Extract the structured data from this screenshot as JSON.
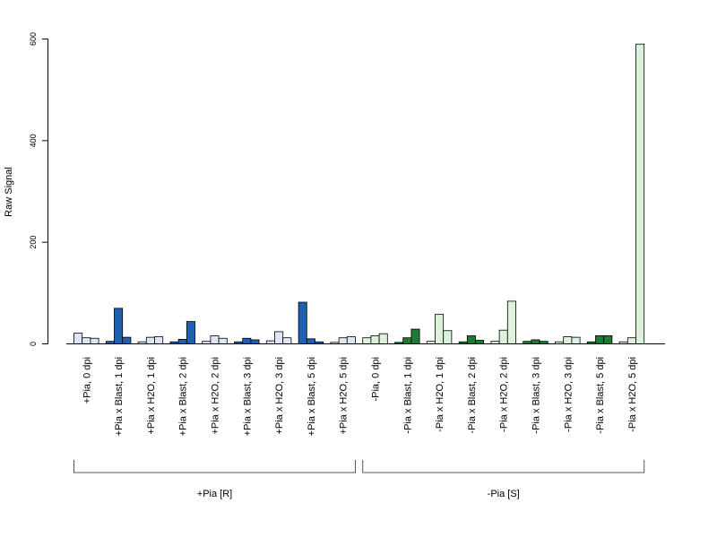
{
  "chart_data": {
    "type": "bar",
    "ylabel": "Raw Signal",
    "ylim": [
      0,
      600
    ],
    "yticks": [
      0,
      200,
      400,
      600
    ],
    "grid": false,
    "legend": "none",
    "colors": {
      "pia_plus_dark": "#2060b0",
      "pia_plus_light": "#dce6f5",
      "pia_minus_dark": "#1f7a35",
      "pia_minus_light": "#dcf2dc"
    },
    "categories": [
      "+Pia, 0 dpi",
      "+Pia x Blast, 1 dpi",
      "+Pia x H2O, 1 dpi",
      "+Pia x Blast, 2 dpi",
      "+Pia x H2O, 2 dpi",
      "+Pia x Blast, 3 dpi",
      "+Pia x H2O, 3 dpi",
      "+Pia x Blast, 5 dpi",
      "+Pia x H2O, 5 dpi",
      "-Pia, 0 dpi",
      "-Pia x Blast, 1 dpi",
      "-Pia x H2O, 1 dpi",
      "-Pia x Blast, 2 dpi",
      "-Pia x H2O, 2 dpi",
      "-Pia x Blast, 3 dpi",
      "-Pia x H2O, 3 dpi",
      "-Pia x Blast, 5 dpi",
      "-Pia x H2O, 5 dpi"
    ],
    "groups": [
      {
        "label": "+Pia [R]",
        "from": 0,
        "to": 8
      },
      {
        "label": "-Pia [S]",
        "from": 9,
        "to": 17
      }
    ],
    "bars": [
      {
        "values": [
          21,
          12,
          11
        ],
        "colors": [
          "light",
          "light",
          "light"
        ],
        "palette": "plus"
      },
      {
        "values": [
          5,
          70,
          13
        ],
        "colors": [
          "dark",
          "dark",
          "dark"
        ],
        "palette": "plus"
      },
      {
        "values": [
          4,
          13,
          14
        ],
        "colors": [
          "light",
          "light",
          "light"
        ],
        "palette": "plus"
      },
      {
        "values": [
          4,
          9,
          44
        ],
        "colors": [
          "dark",
          "dark",
          "dark"
        ],
        "palette": "plus"
      },
      {
        "values": [
          5,
          16,
          11
        ],
        "colors": [
          "light",
          "light",
          "light"
        ],
        "palette": "plus"
      },
      {
        "values": [
          4,
          11,
          8
        ],
        "colors": [
          "dark",
          "dark",
          "dark"
        ],
        "palette": "plus"
      },
      {
        "values": [
          6,
          24,
          12
        ],
        "colors": [
          "light",
          "light",
          "light"
        ],
        "palette": "plus"
      },
      {
        "values": [
          82,
          10,
          4
        ],
        "colors": [
          "dark",
          "dark",
          "dark"
        ],
        "palette": "plus"
      },
      {
        "values": [
          3,
          12,
          14
        ],
        "colors": [
          "light",
          "light",
          "light"
        ],
        "palette": "plus"
      },
      {
        "values": [
          12,
          16,
          20
        ],
        "colors": [
          "light",
          "light",
          "light"
        ],
        "palette": "minus"
      },
      {
        "values": [
          3,
          12,
          29
        ],
        "colors": [
          "dark",
          "dark",
          "dark"
        ],
        "palette": "minus"
      },
      {
        "values": [
          5,
          58,
          26
        ],
        "colors": [
          "light",
          "light",
          "light"
        ],
        "palette": "minus"
      },
      {
        "values": [
          4,
          16,
          7
        ],
        "colors": [
          "dark",
          "dark",
          "dark"
        ],
        "palette": "minus"
      },
      {
        "values": [
          5,
          27,
          84
        ],
        "colors": [
          "light",
          "light",
          "light"
        ],
        "palette": "minus"
      },
      {
        "values": [
          5,
          8,
          5
        ],
        "colors": [
          "dark",
          "dark",
          "dark"
        ],
        "palette": "minus"
      },
      {
        "values": [
          4,
          14,
          13
        ],
        "colors": [
          "light",
          "light",
          "light"
        ],
        "palette": "minus"
      },
      {
        "values": [
          4,
          16,
          16
        ],
        "colors": [
          "dark",
          "dark",
          "dark"
        ],
        "palette": "minus"
      },
      {
        "values": [
          4,
          12,
          590
        ],
        "colors": [
          "light",
          "light",
          "light"
        ],
        "palette": "minus"
      }
    ]
  }
}
